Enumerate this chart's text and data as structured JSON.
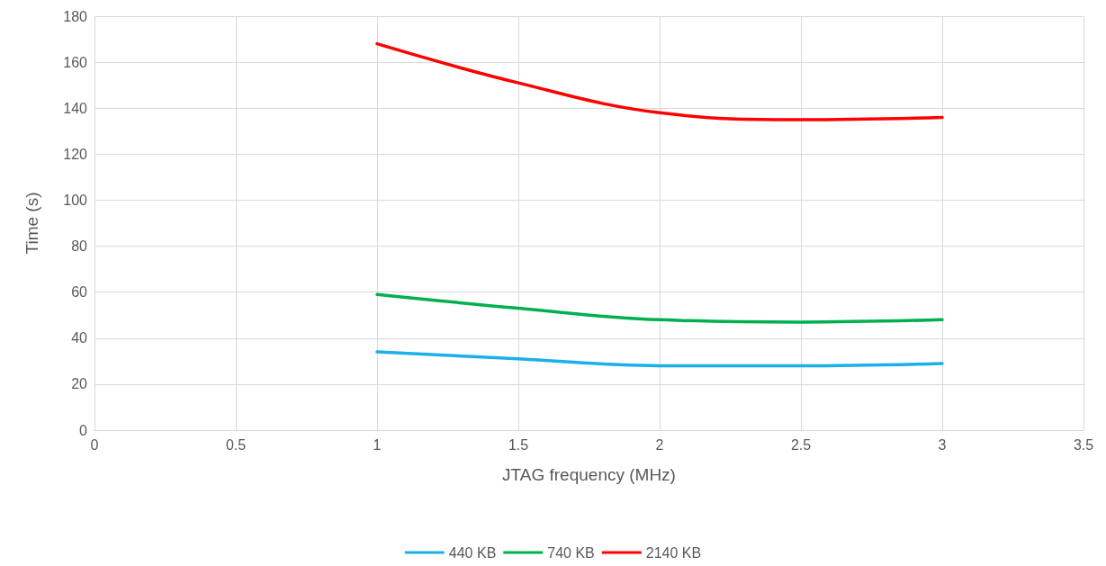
{
  "chart_data": {
    "type": "line",
    "xlabel": "JTAG frequency (MHz)",
    "ylabel": "Time (s)",
    "x": [
      1,
      1.5,
      2,
      2.5,
      3
    ],
    "series": [
      {
        "name": "440 KB",
        "color": "#1cb0e8",
        "values": [
          34,
          31,
          28,
          28,
          29
        ]
      },
      {
        "name": "740 KB",
        "color": "#00b050",
        "values": [
          59,
          53,
          48,
          47,
          48
        ]
      },
      {
        "name": "2140 KB",
        "color": "#ff0000",
        "values": [
          168,
          151,
          138,
          135,
          136
        ]
      }
    ],
    "xlim": [
      0,
      3.5
    ],
    "xticks": [
      0,
      0.5,
      1,
      1.5,
      2,
      2.5,
      3,
      3.5
    ],
    "ylim": [
      0,
      180
    ],
    "yticks": [
      0,
      20,
      40,
      60,
      80,
      100,
      120,
      140,
      160,
      180
    ],
    "grid": true,
    "legend": "bottom",
    "marker": "none",
    "line_style": "solid"
  }
}
